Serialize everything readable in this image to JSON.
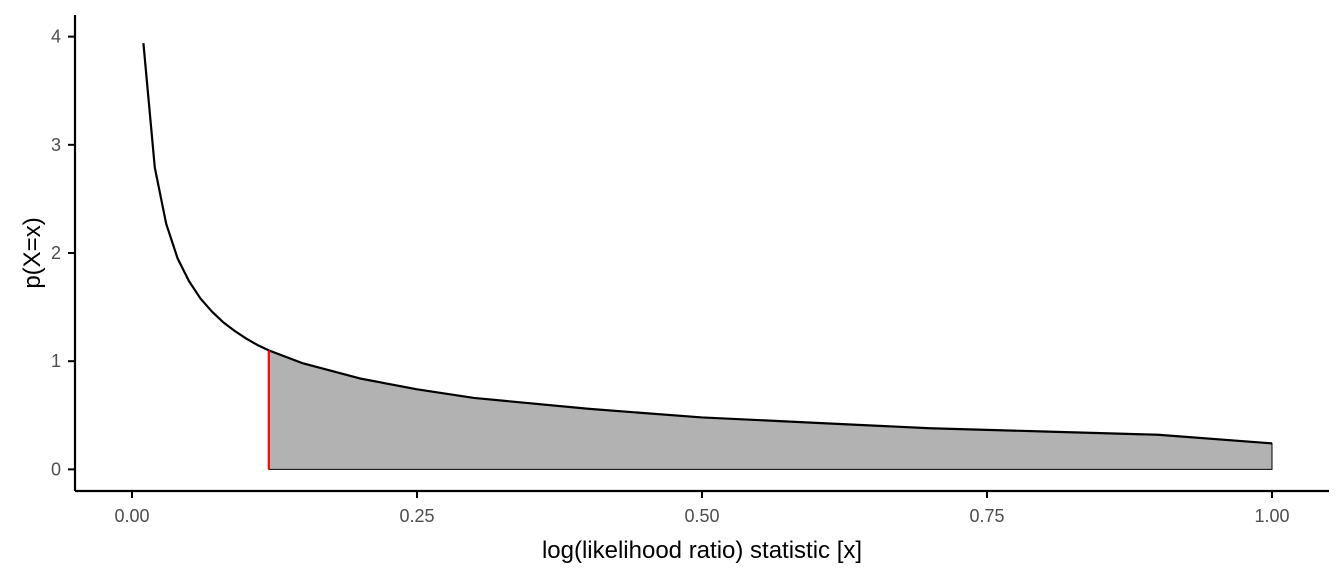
{
  "chart_data": {
    "type": "area",
    "title": "",
    "xlabel": "log(likelihood ratio) statistic [x]",
    "ylabel": "p(X=x)",
    "xlim": [
      -0.05,
      1.05
    ],
    "ylim": [
      -0.2,
      4.2
    ],
    "grid": false,
    "x_ticks": [
      0.0,
      0.25,
      0.5,
      0.75,
      1.0
    ],
    "x_tick_labels": [
      "0.00",
      "0.25",
      "0.50",
      "0.75",
      "1.00"
    ],
    "y_ticks": [
      0,
      1,
      2,
      3,
      4
    ],
    "y_tick_labels": [
      "0",
      "1",
      "2",
      "3",
      "4"
    ],
    "curve": {
      "x": [
        0.01,
        0.02,
        0.03,
        0.04,
        0.05,
        0.06,
        0.07,
        0.08,
        0.09,
        0.1,
        0.11,
        0.12,
        0.15,
        0.2,
        0.25,
        0.3,
        0.4,
        0.5,
        0.6,
        0.7,
        0.8,
        0.9,
        1.0
      ],
      "y": [
        3.94,
        2.79,
        2.27,
        1.95,
        1.74,
        1.58,
        1.46,
        1.36,
        1.28,
        1.21,
        1.15,
        1.1,
        0.98,
        0.84,
        0.74,
        0.66,
        0.56,
        0.48,
        0.43,
        0.38,
        0.35,
        0.32,
        0.24
      ]
    },
    "shaded_region": {
      "x_from": 0.12,
      "x_to": 1.0
    },
    "threshold_x": 0.12,
    "colors": {
      "curve": "#000000",
      "fill": "#b2b2b2",
      "threshold": "#ff0000",
      "axis": "#000000",
      "tick_text": "#4d4d4d"
    }
  }
}
